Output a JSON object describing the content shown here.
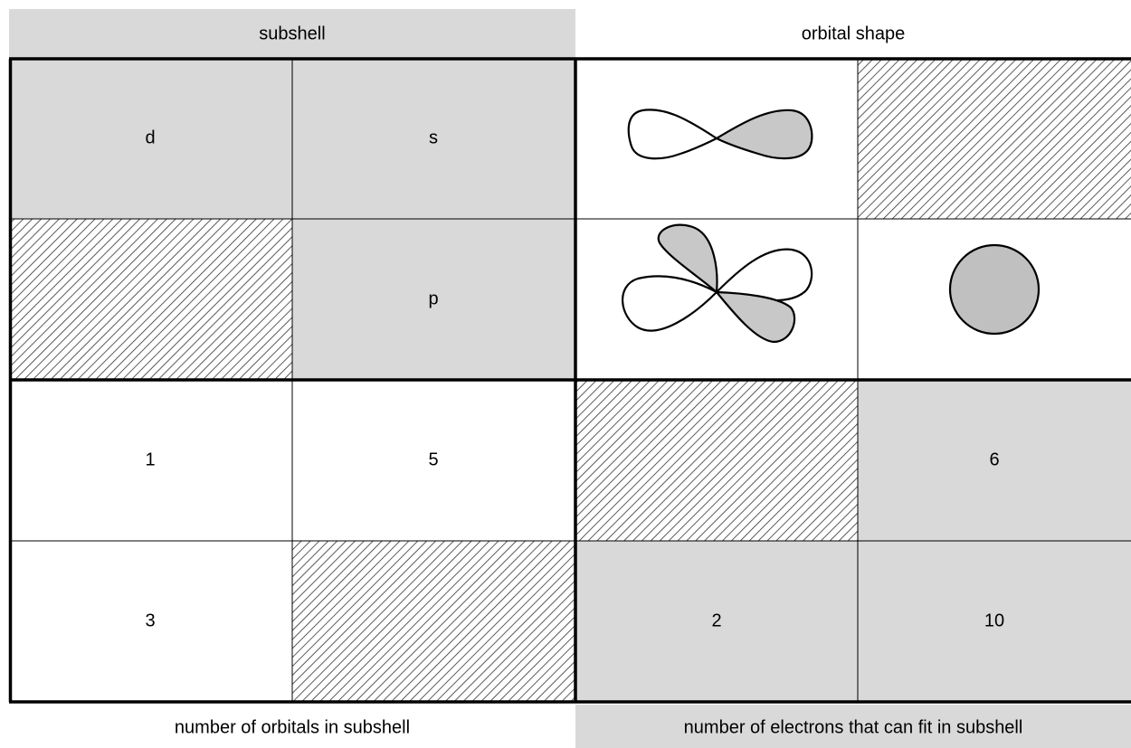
{
  "header": {
    "left": "subshell",
    "right": "orbital shape"
  },
  "cells": {
    "r1c1": "d",
    "r1c2": "s",
    "r2c2": "p",
    "r3c1": "1",
    "r3c2": "5",
    "r3c4": "6",
    "r4c1": "3",
    "r4c3": "2",
    "r4c4": "10"
  },
  "footer": {
    "left": "number of orbitals in subshell",
    "right": "number of electrons that can fit in subshell"
  }
}
